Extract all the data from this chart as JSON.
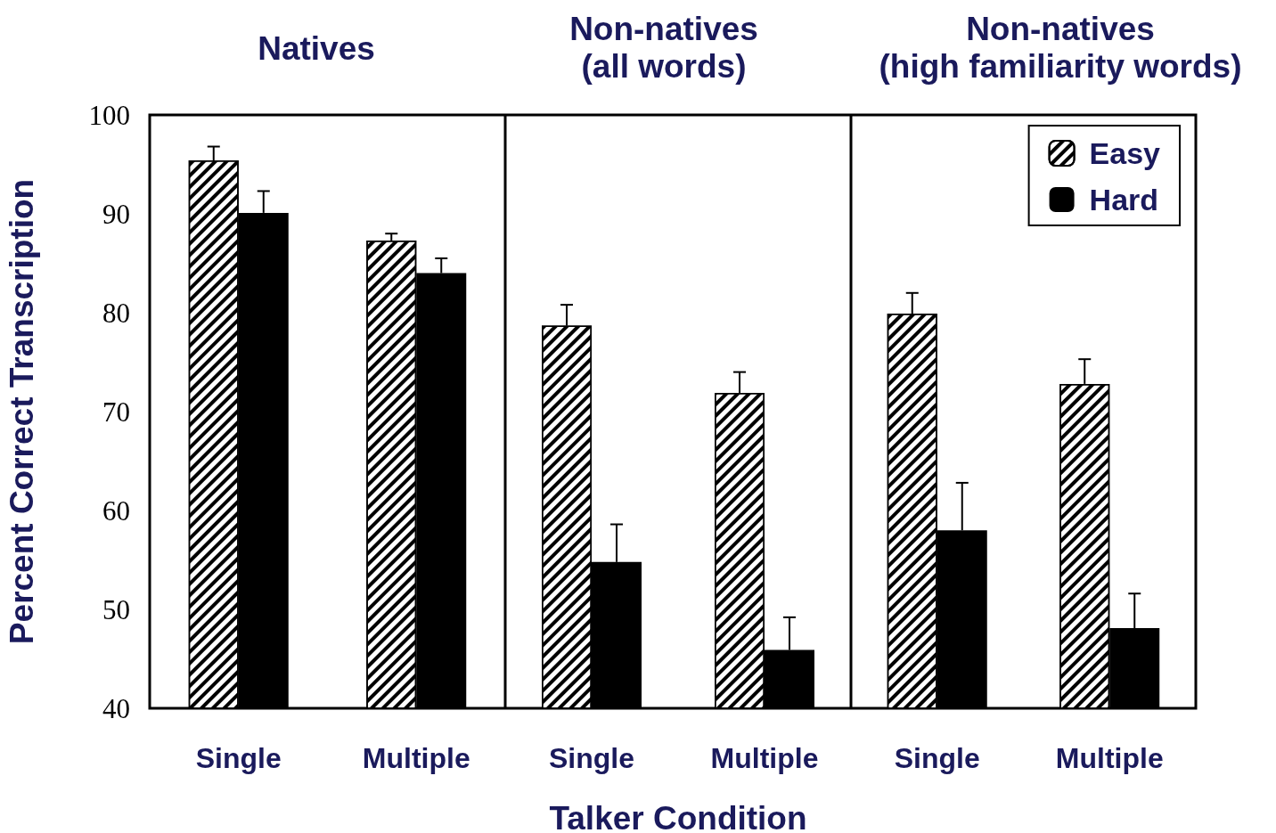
{
  "chart_data": [
    {
      "type": "bar",
      "title": "Natives",
      "ylabel": "Percent Correct Transcription",
      "categories": [
        "Single",
        "Multiple"
      ],
      "ylim": [
        40,
        100
      ],
      "yticks": [
        40,
        50,
        60,
        70,
        80,
        90,
        100
      ],
      "grid": false,
      "legend": false,
      "series": [
        {
          "color": "#ffffff",
          "values": [
            95.4,
            87.3
          ],
          "errors": [
            [
              95.4,
              96.8
            ],
            [
              87.3,
              88.0
            ]
          ]
        },
        {
          "color": "#000000",
          "values": [
            90.1,
            84.0
          ],
          "errors": [
            [
              90.1,
              92.3
            ],
            [
              84.0,
              85.5
            ]
          ]
        }
      ]
    },
    {
      "type": "bar",
      "title": "Non-natives\n(all words)",
      "xlabel": "Talker Condition",
      "categories": [
        "Single",
        "Multiple"
      ],
      "ylim": [
        40,
        100
      ],
      "yticks": [
        40,
        50,
        60,
        70,
        80,
        90,
        100
      ],
      "tick_labels": "x",
      "grid": false,
      "legend": false,
      "series": [
        {
          "color": "#ffffff",
          "values": [
            78.7,
            71.9
          ],
          "errors": [
            [
              78.7,
              80.8
            ],
            [
              71.9,
              74.0
            ]
          ]
        },
        {
          "color": "#000000",
          "values": [
            54.8,
            45.9
          ],
          "errors": [
            [
              54.8,
              58.6
            ],
            [
              45.9,
              49.2
            ]
          ]
        }
      ]
    },
    {
      "type": "bar",
      "title": "Non-natives\n(high familiarity words)",
      "categories": [
        "Single",
        "Multiple"
      ],
      "ylim": [
        40,
        100
      ],
      "yticks": [
        40,
        50,
        60,
        70,
        80,
        90,
        100
      ],
      "tick_labels": "x",
      "grid": false,
      "legend": "top right",
      "series": [
        {
          "name": "Easy",
          "color": "#ffffff",
          "values": [
            79.9,
            72.8
          ],
          "errors": [
            [
              79.9,
              82.0
            ],
            [
              72.8,
              75.3
            ]
          ]
        },
        {
          "name": "Hard",
          "color": "#000000",
          "values": [
            58.0,
            48.1
          ],
          "errors": [
            [
              58.0,
              62.8
            ],
            [
              48.1,
              51.6
            ]
          ]
        }
      ]
    }
  ]
}
